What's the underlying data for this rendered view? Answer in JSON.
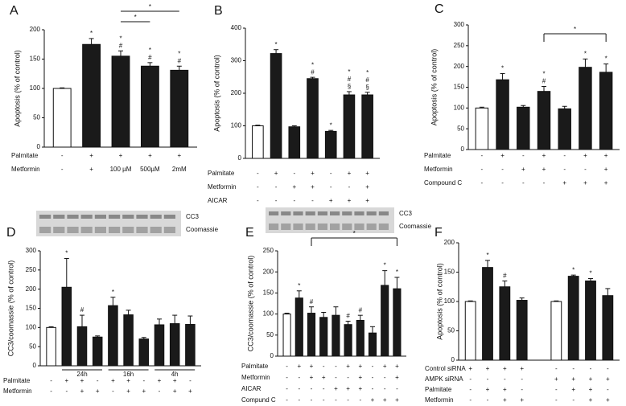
{
  "chart_data": [
    {
      "type": "bar",
      "title": "A",
      "ylabel": "Apoptosis (% of control)",
      "ylim": [
        0,
        200
      ],
      "yticks": [
        0,
        50,
        100,
        150,
        200
      ],
      "values": [
        100,
        175,
        155,
        138,
        131
      ],
      "errors": [
        1,
        10,
        9,
        6,
        7
      ],
      "colors": [
        "#ffffff",
        "#1a1a1a",
        "#1a1a1a",
        "#1a1a1a",
        "#1a1a1a"
      ],
      "annotations": [
        [],
        [
          "*"
        ],
        [
          "*",
          "#"
        ],
        [
          "*",
          "#"
        ],
        [
          "*",
          "#"
        ]
      ],
      "rows": [
        {
          "name": "Palmitate",
          "labels": [
            "-",
            "+",
            "+",
            "+",
            "+"
          ]
        },
        {
          "name": "Metformin",
          "labels": [
            "-",
            "+",
            "100 µM",
            "500µM",
            "2mM"
          ]
        }
      ],
      "brackets": [
        {
          "from": 2,
          "to": 4,
          "label": "*"
        },
        {
          "from": 2,
          "to": 3,
          "label": "*"
        }
      ]
    },
    {
      "type": "bar",
      "title": "B",
      "ylabel": "Apoptosis (% of control)",
      "ylim": [
        0,
        400
      ],
      "yticks": [
        0,
        100,
        200,
        300,
        400
      ],
      "values": [
        100,
        322,
        97,
        245,
        83,
        195,
        195
      ],
      "errors": [
        2,
        12,
        3,
        4,
        3,
        10,
        8
      ],
      "colors": [
        "#ffffff",
        "#1a1a1a",
        "#1a1a1a",
        "#1a1a1a",
        "#1a1a1a",
        "#1a1a1a",
        "#1a1a1a"
      ],
      "annotations": [
        [],
        [
          "*"
        ],
        [],
        [
          "*",
          "#"
        ],
        [
          "*"
        ],
        [
          "*",
          "#",
          "§"
        ],
        [
          "*",
          "#",
          "§"
        ]
      ],
      "rows": [
        {
          "name": "Palmitate",
          "labels": [
            "-",
            "+",
            "-",
            "+",
            "-",
            "+",
            "+"
          ]
        },
        {
          "name": "Metformin",
          "labels": [
            "-",
            "-",
            "+",
            "+",
            "-",
            "-",
            "+"
          ]
        },
        {
          "name": "AICAR",
          "labels": [
            "-",
            "-",
            "-",
            "-",
            "+",
            "+",
            "+"
          ]
        }
      ],
      "brackets": []
    },
    {
      "type": "bar",
      "title": "C",
      "ylabel": "Apoptosis (% of control)",
      "ylim": [
        0,
        300
      ],
      "yticks": [
        0,
        50,
        100,
        150,
        200,
        250,
        300
      ],
      "values": [
        100,
        168,
        102,
        140,
        98,
        198,
        186
      ],
      "errors": [
        2,
        15,
        4,
        12,
        6,
        20,
        20
      ],
      "colors": [
        "#ffffff",
        "#1a1a1a",
        "#1a1a1a",
        "#1a1a1a",
        "#1a1a1a",
        "#1a1a1a",
        "#1a1a1a"
      ],
      "annotations": [
        [],
        [
          "*"
        ],
        [],
        [
          "*",
          "#"
        ],
        [],
        [
          "*"
        ],
        [
          "*"
        ]
      ],
      "rows": [
        {
          "name": "Palmitate",
          "labels": [
            "-",
            "+",
            "-",
            "+",
            "-",
            "+",
            "+"
          ]
        },
        {
          "name": "Metformin",
          "labels": [
            "-",
            "-",
            "+",
            "+",
            "-",
            "-",
            "+"
          ]
        },
        {
          "name": "Compound C",
          "labels": [
            "-",
            "-",
            "-",
            "-",
            "+",
            "+",
            "+"
          ]
        }
      ],
      "brackets": [
        {
          "from": 3,
          "to": 6,
          "label": "*"
        }
      ]
    },
    {
      "type": "bar",
      "title": "D",
      "ylabel": "CC3/coomassie (% of control)",
      "ylim": [
        0,
        300
      ],
      "yticks": [
        0,
        50,
        100,
        150,
        200,
        250,
        300
      ],
      "values": [
        100,
        205,
        102,
        75,
        157,
        133,
        70,
        107,
        110,
        108
      ],
      "errors": [
        2,
        75,
        30,
        3,
        22,
        12,
        4,
        15,
        22,
        22
      ],
      "colors": [
        "#ffffff",
        "#1a1a1a",
        "#1a1a1a",
        "#1a1a1a",
        "#1a1a1a",
        "#1a1a1a",
        "#1a1a1a",
        "#1a1a1a",
        "#1a1a1a",
        "#1a1a1a"
      ],
      "annotations": [
        [],
        [
          "*"
        ],
        [
          "#"
        ],
        [],
        [
          "*"
        ],
        [],
        [],
        [],
        [],
        []
      ],
      "groups": [
        {
          "label": "24h",
          "from": 1,
          "to": 3
        },
        {
          "label": "16h",
          "from": 4,
          "to": 6
        },
        {
          "label": "4h",
          "from": 7,
          "to": 9
        }
      ],
      "blot_labels": [
        "CC3",
        "Coomassie"
      ],
      "rows": [
        {
          "name": "Palmitate",
          "labels": [
            "-",
            "+",
            "+",
            "-",
            "+",
            "+",
            "-",
            "+",
            "+",
            "-"
          ]
        },
        {
          "name": "Metformin",
          "labels": [
            "-",
            "-",
            "+",
            "+",
            "-",
            "+",
            "+",
            "-",
            "+",
            "+"
          ]
        }
      ],
      "brackets": []
    },
    {
      "type": "bar",
      "title": "E",
      "ylabel": "CC3/coomassie (% of control)",
      "ylim": [
        0,
        250
      ],
      "yticks": [
        0,
        50,
        100,
        150,
        200,
        250
      ],
      "values": [
        100,
        138,
        102,
        92,
        97,
        75,
        85,
        55,
        168,
        160
      ],
      "errors": [
        2,
        17,
        15,
        12,
        20,
        8,
        12,
        15,
        35,
        27
      ],
      "colors": [
        "#ffffff",
        "#1a1a1a",
        "#1a1a1a",
        "#1a1a1a",
        "#1a1a1a",
        "#1a1a1a",
        "#1a1a1a",
        "#1a1a1a",
        "#1a1a1a",
        "#1a1a1a"
      ],
      "annotations": [
        [],
        [
          "*"
        ],
        [
          "#"
        ],
        [],
        [],
        [
          "#"
        ],
        [
          "#"
        ],
        [],
        [
          "*"
        ],
        [
          "*"
        ]
      ],
      "blot_labels": [
        "CC3",
        "Coomassie"
      ],
      "rows": [
        {
          "name": "Palmitate",
          "labels": [
            "-",
            "+",
            "+",
            "-",
            "-",
            "+",
            "+",
            "-",
            "+",
            "+"
          ]
        },
        {
          "name": "Metformin",
          "labels": [
            "-",
            "-",
            "+",
            "+",
            "-",
            "-",
            "+",
            "-",
            "-",
            "+"
          ]
        },
        {
          "name": "AICAR",
          "labels": [
            "-",
            "-",
            "-",
            "-",
            "+",
            "+",
            "+",
            "-",
            "-",
            "-"
          ]
        },
        {
          "name": "Compund C",
          "labels": [
            "-",
            "-",
            "-",
            "-",
            "-",
            "-",
            "-",
            "+",
            "+",
            "+"
          ]
        }
      ],
      "brackets": [
        {
          "from": 2,
          "to": 9,
          "label": "*"
        }
      ]
    },
    {
      "type": "bar",
      "title": "F",
      "ylabel": "Apoptosis (% of control)",
      "ylim": [
        0,
        200
      ],
      "yticks": [
        0,
        50,
        100,
        150,
        200
      ],
      "values": [
        100,
        158,
        125,
        102,
        100,
        143,
        135,
        110
      ],
      "errors": [
        1,
        12,
        10,
        4,
        1,
        2,
        4,
        12
      ],
      "colors": [
        "#ffffff",
        "#1a1a1a",
        "#1a1a1a",
        "#1a1a1a",
        "#ffffff",
        "#1a1a1a",
        "#1a1a1a",
        "#1a1a1a"
      ],
      "annotations": [
        [],
        [
          "*"
        ],
        [
          "#"
        ],
        [],
        [],
        [
          "*"
        ],
        [
          "*"
        ],
        []
      ],
      "rows": [
        {
          "name": "Control siRNA",
          "labels": [
            "+",
            "+",
            "+",
            "+",
            "-",
            "-",
            "-",
            "-"
          ]
        },
        {
          "name": "AMPK siRNA",
          "labels": [
            "-",
            "-",
            "-",
            "-",
            "+",
            "+",
            "+",
            "+"
          ]
        },
        {
          "name": "Palmitate",
          "labels": [
            "-",
            "+",
            "+",
            "-",
            "-",
            "+",
            "+",
            "-"
          ]
        },
        {
          "name": "Metformin",
          "labels": [
            "-",
            "-",
            "+",
            "+",
            "-",
            "-",
            "+",
            "+"
          ]
        }
      ],
      "brackets": []
    }
  ]
}
